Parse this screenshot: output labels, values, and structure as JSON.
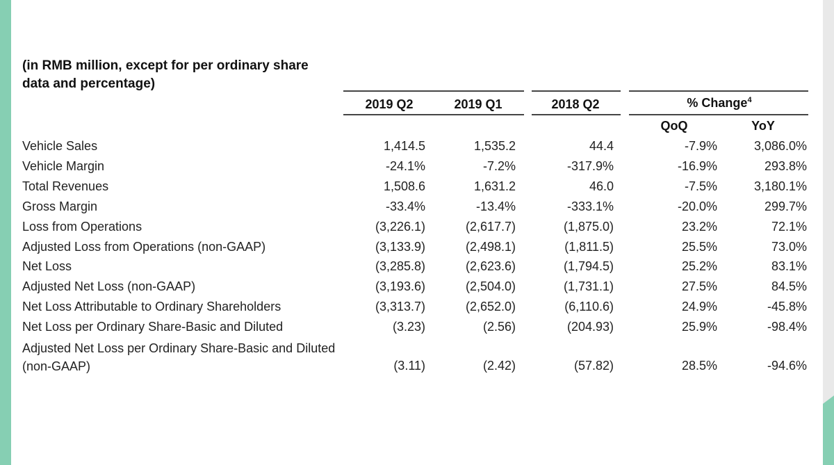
{
  "heading": "(in RMB million, except for per ordinary share data and percentage)",
  "columns": {
    "q2_2019": "2019 Q2",
    "q1_2019": "2019 Q1",
    "q2_2018": "2018 Q2",
    "pct_change": "% Change",
    "pct_change_footnote": "4",
    "qoq": "QoQ",
    "yoy": "YoY"
  },
  "rows": [
    {
      "label": "Vehicle Sales",
      "q2_2019": "1,414.5",
      "q1_2019": "1,535.2",
      "q2_2018": "44.4",
      "qoq": "-7.9%",
      "yoy": "3,086.0%"
    },
    {
      "label": "Vehicle Margin",
      "q2_2019": "-24.1%",
      "q1_2019": "-7.2%",
      "q2_2018": "-317.9%",
      "qoq": "-16.9%",
      "yoy": "293.8%"
    },
    {
      "label": "Total Revenues",
      "q2_2019": "1,508.6",
      "q1_2019": "1,631.2",
      "q2_2018": "46.0",
      "qoq": "-7.5%",
      "yoy": "3,180.1%"
    },
    {
      "label": "Gross Margin",
      "q2_2019": "-33.4%",
      "q1_2019": "-13.4%",
      "q2_2018": "-333.1%",
      "qoq": "-20.0%",
      "yoy": "299.7%"
    },
    {
      "label": "Loss from Operations",
      "q2_2019": "(3,226.1)",
      "q1_2019": "(2,617.7)",
      "q2_2018": "(1,875.0)",
      "qoq": "23.2%",
      "yoy": "72.1%"
    },
    {
      "label": "Adjusted Loss from Operations (non-GAAP)",
      "q2_2019": "(3,133.9)",
      "q1_2019": "(2,498.1)",
      "q2_2018": "(1,811.5)",
      "qoq": "25.5%",
      "yoy": "73.0%"
    },
    {
      "label": "Net Loss",
      "q2_2019": "(3,285.8)",
      "q1_2019": "(2,623.6)",
      "q2_2018": "(1,794.5)",
      "qoq": "25.2%",
      "yoy": "83.1%"
    },
    {
      "label": "Adjusted Net Loss (non-GAAP)",
      "q2_2019": "(3,193.6)",
      "q1_2019": "(2,504.0)",
      "q2_2018": "(1,731.1)",
      "qoq": "27.5%",
      "yoy": "84.5%"
    },
    {
      "label": "Net Loss Attributable to Ordinary Shareholders",
      "q2_2019": "(3,313.7)",
      "q1_2019": "(2,652.0)",
      "q2_2018": "(6,110.6)",
      "qoq": "24.9%",
      "yoy": "-45.8%"
    },
    {
      "label": "Net Loss per Ordinary Share-Basic and Diluted",
      "q2_2019": "(3.23)",
      "q1_2019": "(2.56)",
      "q2_2018": "(204.93)",
      "qoq": "25.9%",
      "yoy": "-98.4%"
    },
    {
      "label": "Adjusted Net Loss per Ordinary Share-Basic and Diluted (non-GAAP)",
      "q2_2019": "(3.11)",
      "q1_2019": "(2.42)",
      "q2_2018": "(57.82)",
      "qoq": "28.5%",
      "yoy": "-94.6%"
    }
  ]
}
